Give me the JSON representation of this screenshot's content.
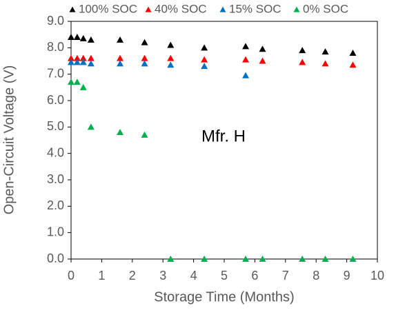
{
  "chart_data": {
    "type": "scatter",
    "x_label": "Storage Time (Months)",
    "y_label": "Open-Circuit Voltage (V)",
    "annotation": "Mfr. H",
    "legend": "top",
    "xlim": [
      0,
      10
    ],
    "xticks": [
      0,
      1,
      2,
      3,
      4,
      5,
      6,
      7,
      8,
      9,
      10
    ],
    "ylim": [
      0,
      9
    ],
    "yticks": [
      {
        "value": 0,
        "label": "0.0"
      },
      {
        "value": 1,
        "label": "1.0"
      },
      {
        "value": 2,
        "label": "2.0"
      },
      {
        "value": 3,
        "label": "3.0"
      },
      {
        "value": 4,
        "label": "4.0"
      },
      {
        "value": 5,
        "label": "5.0"
      },
      {
        "value": 6,
        "label": "6.0"
      },
      {
        "value": 7,
        "label": "7.0"
      },
      {
        "value": 8,
        "label": "8.0"
      },
      {
        "value": 9,
        "label": "9.0"
      }
    ],
    "series": [
      {
        "name": "100% SOC",
        "color": "#000000",
        "x": [
          0,
          0.2,
          0.4,
          0.65,
          1.6,
          2.4,
          3.25,
          4.35,
          5.7,
          6.25,
          7.55,
          8.3,
          9.2
        ],
        "values": [
          8.4,
          8.4,
          8.35,
          8.3,
          8.3,
          8.2,
          8.1,
          8.0,
          8.05,
          7.95,
          7.9,
          7.85,
          7.8
        ]
      },
      {
        "name": "40% SOC",
        "color": "#ff0000",
        "x": [
          0,
          0.2,
          0.4,
          0.65,
          1.6,
          2.4,
          3.25,
          4.35,
          5.7,
          6.25,
          7.55,
          8.3,
          9.2
        ],
        "values": [
          7.6,
          7.6,
          7.6,
          7.6,
          7.6,
          7.6,
          7.6,
          7.55,
          7.55,
          7.5,
          7.45,
          7.4,
          7.35
        ]
      },
      {
        "name": "15% SOC",
        "color": "#0070c0",
        "x": [
          0,
          0.2,
          0.4,
          0.65,
          1.6,
          2.4,
          3.25,
          4.35,
          5.7
        ],
        "values": [
          7.45,
          7.45,
          7.45,
          7.4,
          7.4,
          7.4,
          7.35,
          7.3,
          6.95
        ]
      },
      {
        "name": "0% SOC",
        "color": "#00b050",
        "x": [
          0,
          0.2,
          0.4,
          0.65,
          1.6,
          2.4,
          3.25,
          4.35,
          5.7,
          6.25,
          7.55,
          8.3,
          9.2
        ],
        "values": [
          6.7,
          6.7,
          6.5,
          5.0,
          4.8,
          4.7,
          0,
          0,
          0,
          0,
          0,
          0,
          0
        ]
      }
    ]
  }
}
